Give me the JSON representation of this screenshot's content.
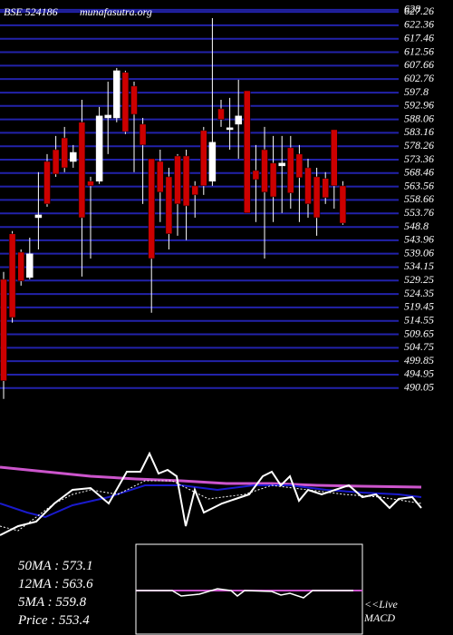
{
  "header": {
    "symbol": "BSE 524186",
    "site": "munafasutra.org"
  },
  "chart_data": {
    "type": "candlestick",
    "open": [
      529.7,
      546.3,
      539.6,
      530.4,
      552.2,
      572.7,
      577.0,
      581.3,
      572.7,
      587.0,
      565.5,
      565.5,
      588.6,
      588.6,
      605.2,
      600.2,
      586.3,
      573.7,
      572.7,
      567.1,
      574.7,
      574.7,
      563.8,
      584.0,
      565.5,
      591.9,
      584.3,
      586.3,
      598.5,
      569.4,
      577.0,
      572.1,
      571.1,
      577.7,
      575.4,
      570.4,
      567.1,
      566.5,
      584.3,
      563.8
    ],
    "high": [
      532.4,
      547.3,
      540.6,
      544.9,
      568.8,
      575.4,
      582.0,
      585.3,
      578.7,
      595.2,
      567.1,
      592.6,
      601.8,
      606.8,
      605.8,
      601.8,
      588.6,
      573.7,
      577.0,
      570.4,
      575.4,
      577.0,
      565.5,
      585.3,
      625.0,
      595.2,
      595.9,
      602.5,
      598.5,
      578.7,
      585.3,
      582.0,
      582.0,
      582.0,
      578.7,
      573.7,
      570.4,
      568.8,
      584.3,
      565.5
    ],
    "low": [
      486.1,
      513.9,
      527.4,
      529.7,
      540.6,
      556.2,
      567.1,
      568.8,
      570.4,
      530.7,
      537.3,
      564.5,
      575.4,
      587.0,
      582.7,
      568.8,
      557.2,
      517.5,
      550.6,
      540.6,
      545.6,
      544.0,
      552.2,
      560.5,
      563.8,
      585.3,
      577.0,
      573.7,
      553.9,
      550.6,
      537.3,
      550.6,
      553.9,
      555.5,
      550.6,
      552.2,
      545.6,
      557.2,
      555.5,
      549.6
    ],
    "close": [
      492.7,
      515.8,
      529.1,
      539.0,
      553.2,
      557.2,
      568.1,
      570.4,
      576.0,
      552.2,
      563.8,
      589.3,
      589.6,
      605.8,
      583.6,
      589.9,
      578.7,
      537.3,
      561.5,
      546.3,
      557.2,
      556.5,
      560.5,
      563.8,
      579.7,
      588.0,
      585.0,
      589.3,
      553.9,
      566.1,
      561.5,
      559.8,
      572.1,
      561.2,
      566.8,
      557.2,
      552.2,
      559.5,
      563.8,
      550.2
    ],
    "up_color": "#ffffff",
    "down_color": "#cc0000",
    "grid": true,
    "grid_color": "#2222aa",
    "ylim": [
      486,
      631.6
    ],
    "yticks": [
      628,
      627.26,
      622.36,
      617.46,
      612.56,
      607.66,
      602.76,
      597.8,
      592.96,
      588.06,
      583.16,
      578.26,
      573.36,
      568.46,
      563.56,
      558.66,
      553.76,
      548.8,
      543.96,
      539.06,
      534.15,
      529.25,
      524.35,
      519.45,
      514.55,
      509.65,
      504.75,
      499.85,
      494.95,
      490.05
    ]
  },
  "legend": {
    "ma50": "50MA : 573.1",
    "ma12": "12MA : 563.6",
    "ma5": "5MA : 559.8",
    "price": "Price   : 553.4"
  },
  "macd": {
    "live": "<<Live",
    "label": "MACD"
  }
}
